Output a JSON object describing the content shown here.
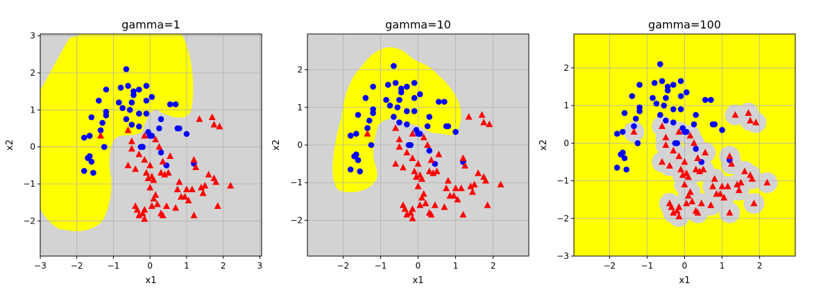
{
  "figure": {
    "colors": {
      "positive_region": "#ffff00",
      "negative_region": "#d3d3d3",
      "class_circle": "#0000ff",
      "class_triangle": "#ff0000",
      "grid": "#b0b0b0"
    }
  },
  "chart_data": [
    {
      "type": "scatter",
      "title": "gamma=1",
      "xlabel": "x1",
      "ylabel": "x2",
      "xlim": [
        -3,
        3.05
      ],
      "ylim": [
        -2.95,
        3.05
      ],
      "xticks": [
        -3,
        -2,
        -1,
        0,
        1,
        2,
        3
      ],
      "yticks": [
        -2,
        -1,
        0,
        1,
        2,
        3
      ],
      "grid": true,
      "region_note": "smooth yellow C-shaped region around circles"
    },
    {
      "type": "scatter",
      "title": "gamma=10",
      "xlabel": "x1",
      "ylabel": "x2",
      "xlim": [
        -2.95,
        2.95
      ],
      "ylim": [
        -2.95,
        2.95
      ],
      "xticks": [
        -2,
        -1,
        0,
        1,
        2
      ],
      "yticks": [
        -2,
        -1,
        0,
        1,
        2
      ],
      "grid": true,
      "region_note": "tighter yellow C-shaped region"
    },
    {
      "type": "scatter",
      "title": "gamma=100",
      "xlabel": "x1",
      "ylabel": "x2",
      "xlim": [
        -2.95,
        2.95
      ],
      "ylim": [
        -3,
        2.9
      ],
      "xticks": [
        -2,
        -1,
        0,
        1,
        2
      ],
      "yticks": [
        -3,
        -2,
        -1,
        0,
        1,
        2
      ],
      "grid": true,
      "region_note": "yellow everywhere except grey blobs around triangles"
    }
  ],
  "points": {
    "circles": [
      [
        -0.65,
        2.1
      ],
      [
        -0.6,
        1.65
      ],
      [
        -0.45,
        1.5
      ],
      [
        -0.45,
        1.4
      ],
      [
        -0.3,
        1.55
      ],
      [
        -0.1,
        1.65
      ],
      [
        0.05,
        1.35
      ],
      [
        -0.8,
        1.6
      ],
      [
        -0.85,
        1.2
      ],
      [
        -1.2,
        1.55
      ],
      [
        -1.4,
        1.25
      ],
      [
        -1.2,
        0.95
      ],
      [
        -1.2,
        0.85
      ],
      [
        -1.6,
        0.8
      ],
      [
        -1.3,
        0.65
      ],
      [
        -1.35,
        0.45
      ],
      [
        -1.65,
        0.3
      ],
      [
        -1.8,
        0.25
      ],
      [
        -0.75,
        1.05
      ],
      [
        -0.55,
        1.0
      ],
      [
        -0.5,
        1.2
      ],
      [
        -0.3,
        0.9
      ],
      [
        -0.1,
        0.9
      ],
      [
        -0.1,
        1.25
      ],
      [
        -0.65,
        0.75
      ],
      [
        -0.5,
        0.6
      ],
      [
        -0.3,
        0.55
      ],
      [
        -0.05,
        0.4
      ],
      [
        0.0,
        0.3
      ],
      [
        0.25,
        0.5
      ],
      [
        0.3,
        0.75
      ],
      [
        0.55,
        1.15
      ],
      [
        0.7,
        1.15
      ],
      [
        0.75,
        0.5
      ],
      [
        0.8,
        0.5
      ],
      [
        1.0,
        0.35
      ],
      [
        0.3,
        -0.15
      ],
      [
        0.45,
        -0.5
      ],
      [
        -0.2,
        0.0
      ],
      [
        -0.25,
        0.0
      ],
      [
        -1.25,
        0.0
      ],
      [
        -1.7,
        -0.3
      ],
      [
        -1.6,
        -0.4
      ],
      [
        -1.65,
        -0.25
      ],
      [
        -1.8,
        -0.65
      ],
      [
        -1.55,
        -0.7
      ],
      [
        1.2,
        -0.45
      ],
      [
        0.05,
        0.3
      ]
    ],
    "triangles": [
      [
        -1.35,
        0.3
      ],
      [
        -0.6,
        0.45
      ],
      [
        -0.15,
        0.3
      ],
      [
        0.15,
        0.2
      ],
      [
        0.25,
        0.0
      ],
      [
        -0.5,
        0.15
      ],
      [
        -0.5,
        -0.05
      ],
      [
        -0.3,
        -0.2
      ],
      [
        -0.15,
        -0.35
      ],
      [
        0.0,
        -0.5
      ],
      [
        -0.6,
        -0.5
      ],
      [
        -0.4,
        -0.6
      ],
      [
        -0.1,
        -0.7
      ],
      [
        0.3,
        -0.7
      ],
      [
        0.4,
        -0.75
      ],
      [
        0.5,
        -0.7
      ],
      [
        0.35,
        -0.4
      ],
      [
        0.55,
        -0.25
      ],
      [
        0.05,
        -0.8
      ],
      [
        0.1,
        -0.9
      ],
      [
        -0.05,
        -0.85
      ],
      [
        0.0,
        -1.1
      ],
      [
        0.15,
        -1.3
      ],
      [
        0.8,
        -0.95
      ],
      [
        0.75,
        -1.15
      ],
      [
        0.85,
        -1.35
      ],
      [
        1.0,
        -1.15
      ],
      [
        1.15,
        -1.15
      ],
      [
        1.2,
        -0.35
      ],
      [
        1.25,
        -0.55
      ],
      [
        1.4,
        -1.1
      ],
      [
        1.45,
        -1.25
      ],
      [
        1.5,
        -1.05
      ],
      [
        1.6,
        -0.75
      ],
      [
        1.75,
        -0.85
      ],
      [
        1.8,
        -0.95
      ],
      [
        2.2,
        -1.05
      ],
      [
        1.35,
        0.75
      ],
      [
        1.7,
        0.8
      ],
      [
        1.75,
        0.6
      ],
      [
        1.9,
        0.55
      ],
      [
        1.85,
        -1.6
      ],
      [
        1.2,
        -1.85
      ],
      [
        1.05,
        -1.45
      ],
      [
        0.95,
        -1.35
      ],
      [
        0.7,
        -1.65
      ],
      [
        0.45,
        -1.6
      ],
      [
        0.2,
        -1.55
      ],
      [
        0.05,
        -1.6
      ],
      [
        0.3,
        -1.8
      ],
      [
        -0.2,
        -1.8
      ],
      [
        -0.35,
        -1.7
      ],
      [
        -0.15,
        -1.95
      ],
      [
        -0.4,
        -1.6
      ],
      [
        0.35,
        -1.85
      ],
      [
        0.1,
        -1.4
      ],
      [
        -0.15,
        -1.7
      ],
      [
        -0.3,
        -1.85
      ]
    ]
  }
}
